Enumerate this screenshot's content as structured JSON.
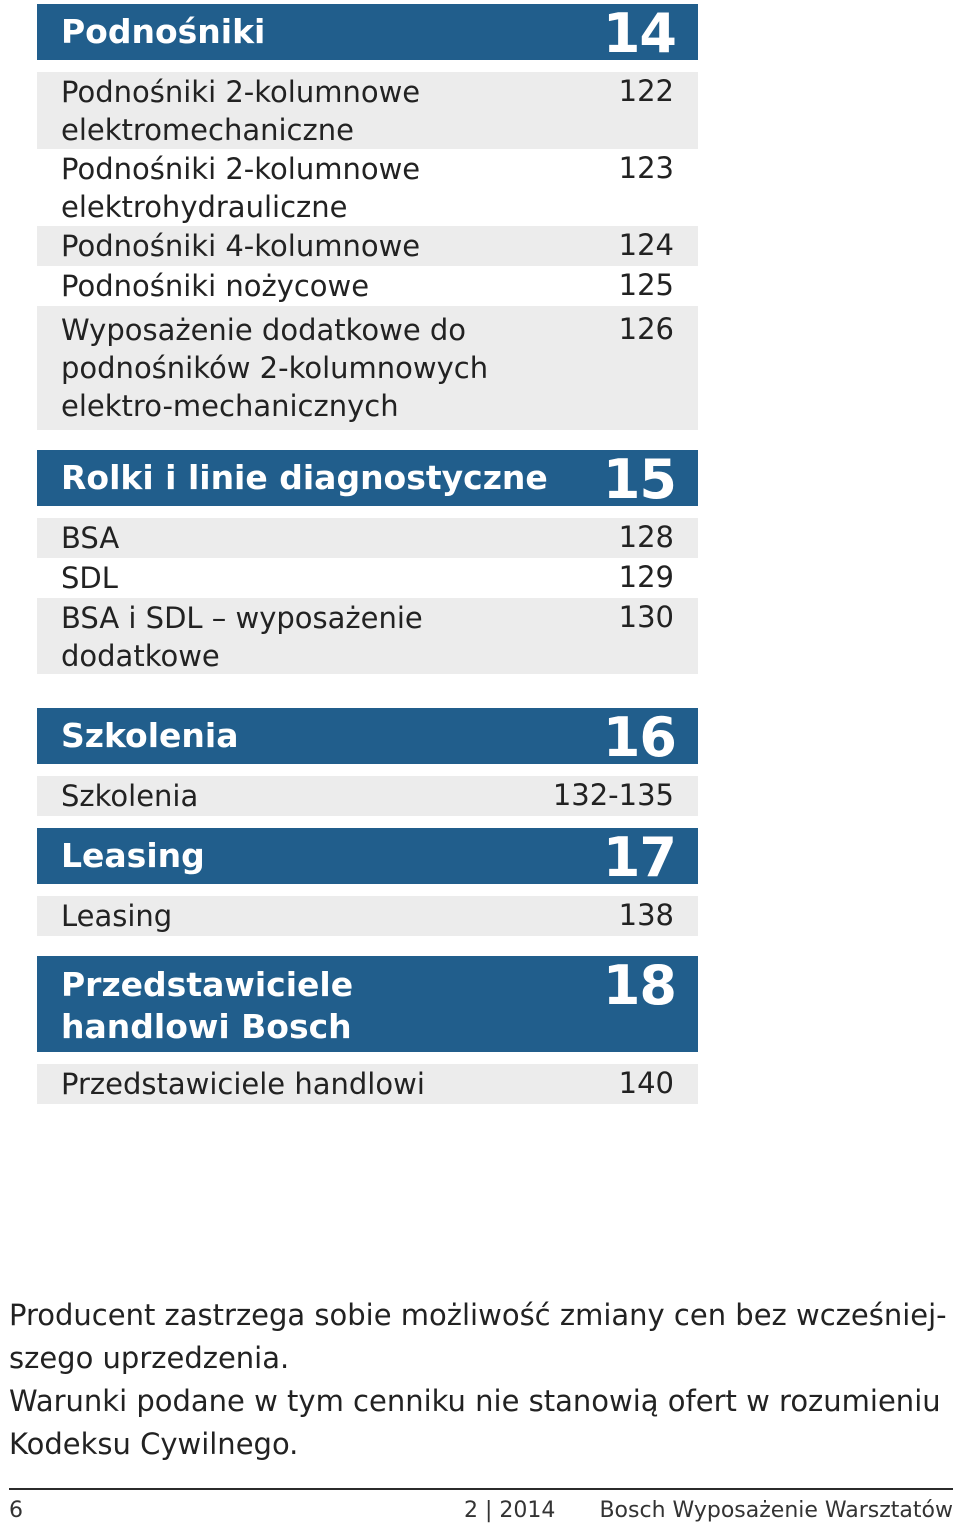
{
  "sections": [
    {
      "title": "Podnośniki",
      "number": "14",
      "items": [
        {
          "label": "Podnośniki 2-kolumnowe elektromechaniczne",
          "page": "122"
        },
        {
          "label": "Podnośniki 2-kolumnowe elektrohydrauliczne",
          "page": "123"
        },
        {
          "label": "Podnośniki 4-kolumnowe",
          "page": "124"
        },
        {
          "label": "Podnośniki nożycowe",
          "page": "125"
        },
        {
          "label": "Wyposażenie dodatkowe do podnośników 2-kolumnowych elektro-mechanicznych",
          "page": "126"
        }
      ]
    },
    {
      "title": "Rolki i linie diagnostyczne",
      "number": "15",
      "items": [
        {
          "label": "BSA",
          "page": "128"
        },
        {
          "label": "SDL",
          "page": "129"
        },
        {
          "label": "BSA i SDL – wyposażenie dodatkowe",
          "page": "130"
        }
      ]
    },
    {
      "title": "Szkolenia",
      "number": "16",
      "items": [
        {
          "label": "Szkolenia",
          "page": "132-135"
        }
      ]
    },
    {
      "title": "Leasing",
      "number": "17",
      "items": [
        {
          "label": "Leasing",
          "page": "138"
        }
      ]
    },
    {
      "title": "Przedstawiciele handlowi Bosch",
      "number": "18",
      "items": [
        {
          "label": "Przedstawiciele handlowi",
          "page": "140"
        }
      ]
    }
  ],
  "footnote": {
    "line1": "Producent zastrzega sobie możliwość zmiany cen bez wcześniej-",
    "line2": "szego uprzedzenia.",
    "line3": "Warunki podane w tym cenniku nie stanowią ofert w rozumieniu",
    "line4": "Kodeksu Cywilnego."
  },
  "footer": {
    "page_number": "6",
    "issue": "2 | 2014",
    "publication": "Bosch Wyposażenie Warsztatów"
  },
  "colors": {
    "header_bg": "#215e8c",
    "row_shade": "#ececec"
  }
}
